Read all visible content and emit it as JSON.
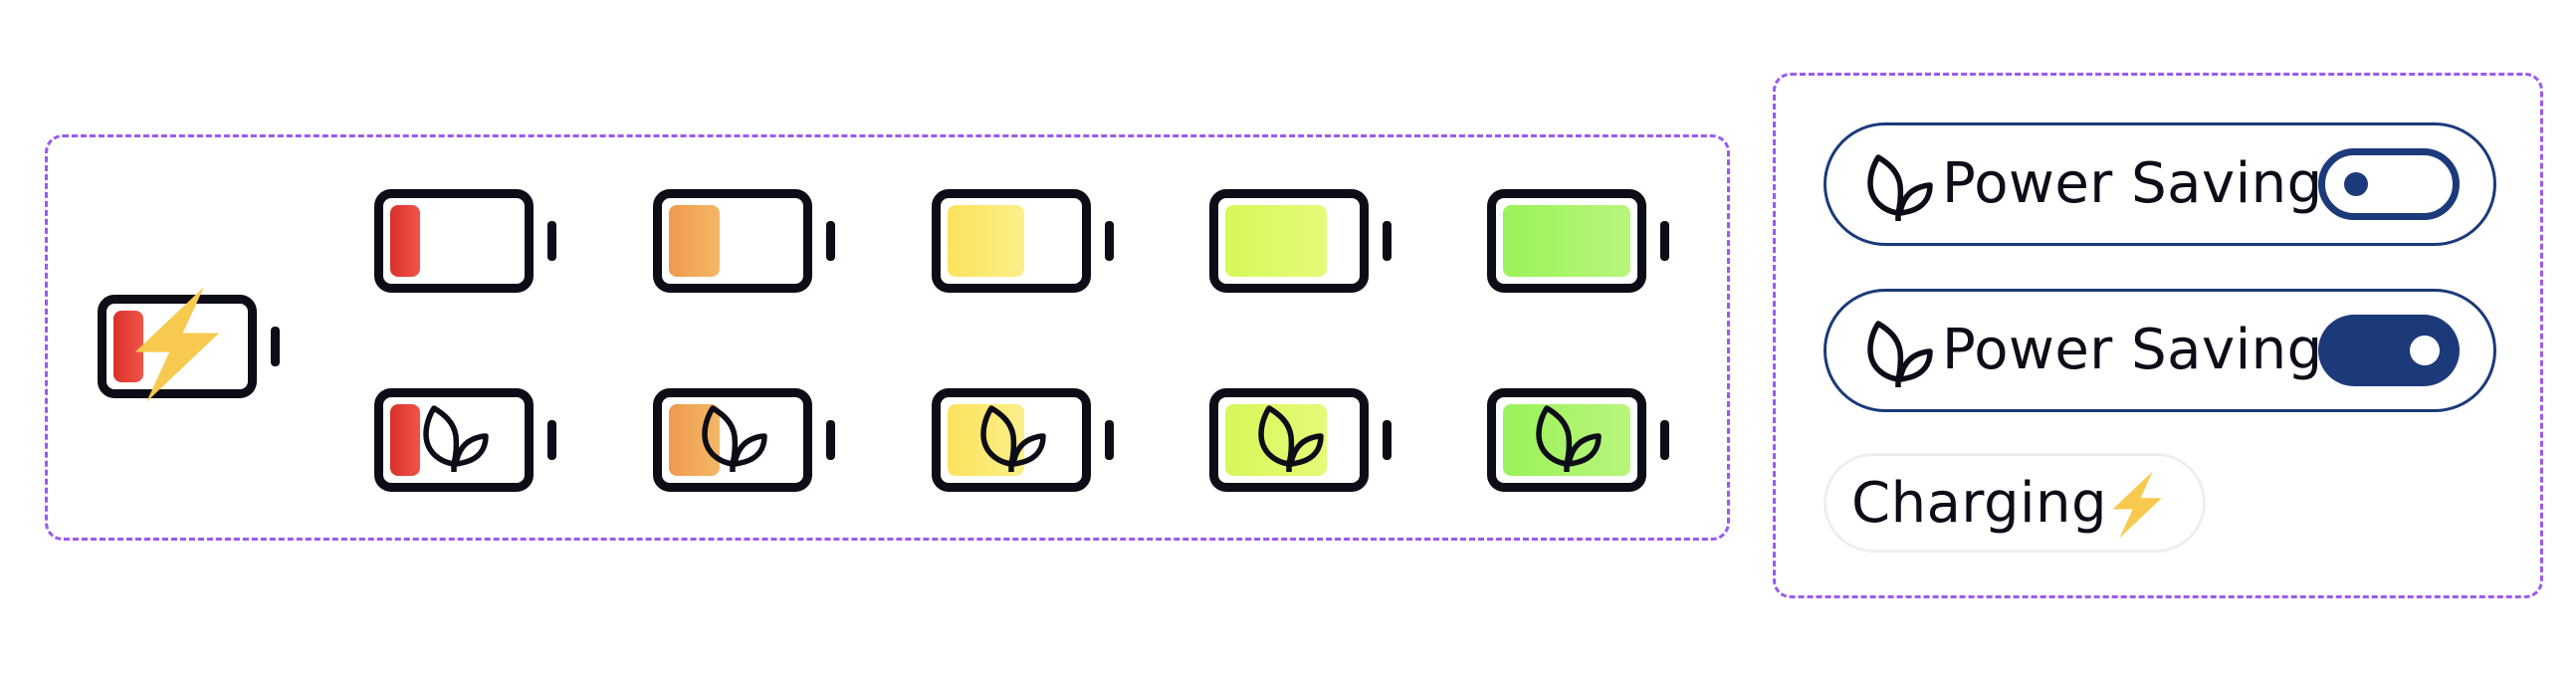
{
  "colors": {
    "accent": "#1c3a7a",
    "outline": "#0d0d18",
    "panel_border": "#9b59f0",
    "bolt": "#f7c94f"
  },
  "battery_levels": [
    {
      "level": 0.2,
      "fill": [
        "#d8312a",
        "#f0554a"
      ]
    },
    {
      "level": 0.4,
      "fill": [
        "#ef9a4e",
        "#f2b866"
      ]
    },
    {
      "level": 0.6,
      "fill": [
        "#fce35c",
        "#fbef8a"
      ]
    },
    {
      "level": 0.8,
      "fill": [
        "#d6f859",
        "#e4fb78"
      ]
    },
    {
      "level": 1.0,
      "fill": [
        "#9bf258",
        "#b8f57c"
      ]
    }
  ],
  "charging_battery": {
    "level": 0.2,
    "fill": [
      "#d8312a",
      "#f0554a"
    ],
    "icon": "lightning-bolt-icon"
  },
  "eco_icon": "leaf-icon",
  "controls": {
    "power_saving_off": {
      "label": "Power Saving",
      "toggle": "off",
      "icon": "leaf-icon"
    },
    "power_saving_on": {
      "label": "Power Saving",
      "toggle": "on",
      "icon": "leaf-icon"
    },
    "charging": {
      "label": "Charging",
      "icon": "lightning-bolt-icon"
    }
  }
}
